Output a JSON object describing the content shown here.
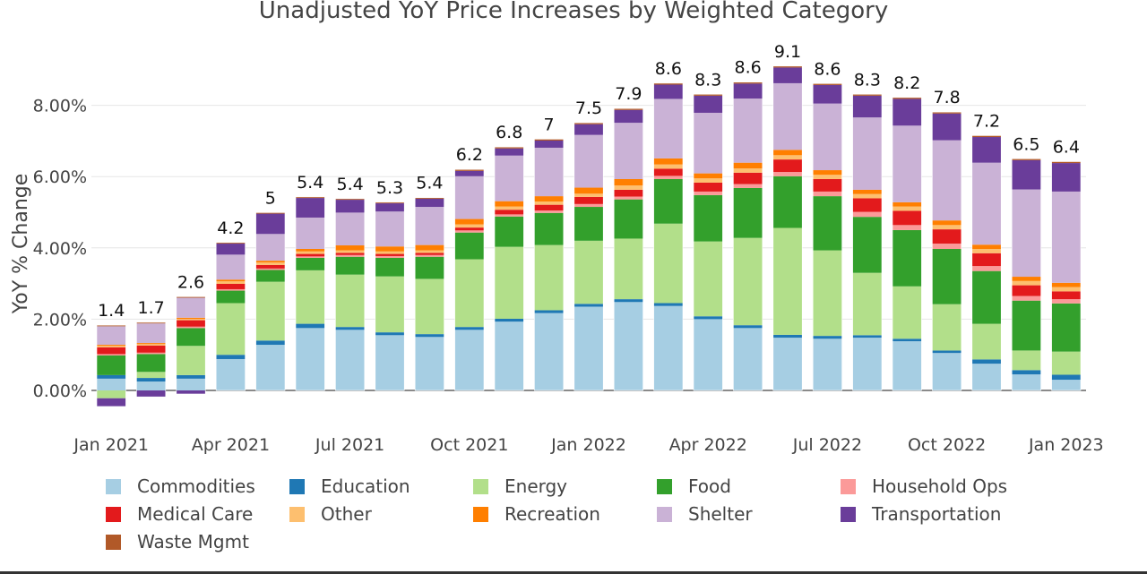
{
  "chart_data": {
    "type": "bar",
    "stacked": true,
    "title": "Unadjusted YoY Price Increases by Weighted Category",
    "xlabel": "",
    "ylabel": "YoY % Change",
    "ylim": [
      -0.6,
      8.8
    ],
    "yticks": [
      0,
      2,
      4,
      6,
      8
    ],
    "ytick_labels": [
      "0.00%",
      "2.00%",
      "4.00%",
      "6.00%",
      "8.00%"
    ],
    "xtick_labels": [
      {
        "index": 0,
        "label": "Jan 2021"
      },
      {
        "index": 3,
        "label": "Apr 2021"
      },
      {
        "index": 6,
        "label": "Jul 2021"
      },
      {
        "index": 9,
        "label": "Oct 2021"
      },
      {
        "index": 12,
        "label": "Jan 2022"
      },
      {
        "index": 15,
        "label": "Apr 2022"
      },
      {
        "index": 18,
        "label": "Jul 2022"
      },
      {
        "index": 21,
        "label": "Oct 2022"
      },
      {
        "index": 24,
        "label": "Jan 2023"
      }
    ],
    "categories": [
      "2021-01",
      "2021-02",
      "2021-03",
      "2021-04",
      "2021-05",
      "2021-06",
      "2021-07",
      "2021-08",
      "2021-09",
      "2021-10",
      "2021-11",
      "2021-12",
      "2022-01",
      "2022-02",
      "2022-03",
      "2022-04",
      "2022-05",
      "2022-06",
      "2022-07",
      "2022-08",
      "2022-09",
      "2022-10",
      "2022-11",
      "2022-12",
      "2023-01"
    ],
    "totals": [
      "1.4",
      "1.7",
      "2.6",
      "4.2",
      "5",
      "5.4",
      "5.4",
      "5.3",
      "5.4",
      "6.2",
      "6.8",
      "7",
      "7.5",
      "7.9",
      "8.6",
      "8.3",
      "8.6",
      "9.1",
      "8.6",
      "8.3",
      "8.2",
      "7.8",
      "7.2",
      "6.5",
      "6.4"
    ],
    "series": [
      {
        "name": "Commodities",
        "color": "#a6cee3",
        "values": [
          0.33,
          0.25,
          0.33,
          0.88,
          1.28,
          1.75,
          1.7,
          1.55,
          1.5,
          1.7,
          1.93,
          2.17,
          2.35,
          2.48,
          2.37,
          2.0,
          1.75,
          1.48,
          1.45,
          1.48,
          1.38,
          1.05,
          0.75,
          0.45,
          0.3
        ]
      },
      {
        "name": "Education",
        "color": "#1f78b4",
        "values": [
          0.1,
          0.1,
          0.1,
          0.12,
          0.12,
          0.12,
          0.08,
          0.08,
          0.08,
          0.08,
          0.08,
          0.08,
          0.08,
          0.08,
          0.08,
          0.08,
          0.08,
          0.08,
          0.08,
          0.07,
          0.07,
          0.07,
          0.12,
          0.12,
          0.14
        ]
      },
      {
        "name": "Energy",
        "color": "#b2df8a",
        "values": [
          -0.22,
          0.17,
          0.82,
          1.45,
          1.65,
          1.5,
          1.47,
          1.57,
          1.55,
          1.9,
          2.02,
          1.83,
          1.77,
          1.7,
          2.23,
          2.1,
          2.45,
          3.0,
          2.4,
          1.75,
          1.47,
          1.3,
          1.0,
          0.55,
          0.65
        ]
      },
      {
        "name": "Food",
        "color": "#33a02c",
        "values": [
          0.55,
          0.5,
          0.5,
          0.35,
          0.33,
          0.35,
          0.5,
          0.52,
          0.62,
          0.75,
          0.85,
          0.9,
          0.95,
          1.1,
          1.25,
          1.3,
          1.4,
          1.45,
          1.52,
          1.57,
          1.58,
          1.55,
          1.48,
          1.4,
          1.35
        ]
      },
      {
        "name": "Household Ops",
        "color": "#fb9a99",
        "values": [
          0.04,
          0.04,
          0.04,
          0.04,
          0.04,
          0.04,
          0.05,
          0.05,
          0.05,
          0.06,
          0.06,
          0.07,
          0.08,
          0.08,
          0.09,
          0.1,
          0.11,
          0.12,
          0.13,
          0.14,
          0.14,
          0.15,
          0.14,
          0.13,
          0.12
        ]
      },
      {
        "name": "Medical Care",
        "color": "#e31a1c",
        "values": [
          0.19,
          0.2,
          0.18,
          0.15,
          0.1,
          0.07,
          0.06,
          0.06,
          0.06,
          0.08,
          0.13,
          0.16,
          0.2,
          0.19,
          0.2,
          0.25,
          0.32,
          0.35,
          0.35,
          0.38,
          0.4,
          0.4,
          0.36,
          0.3,
          0.22
        ]
      },
      {
        "name": "Other",
        "color": "#fdbf6f",
        "values": [
          0.04,
          0.04,
          0.04,
          0.07,
          0.07,
          0.07,
          0.07,
          0.07,
          0.07,
          0.09,
          0.09,
          0.09,
          0.09,
          0.12,
          0.12,
          0.12,
          0.12,
          0.12,
          0.12,
          0.12,
          0.12,
          0.12,
          0.12,
          0.12,
          0.12
        ]
      },
      {
        "name": "Recreation",
        "color": "#ff7f00",
        "values": [
          0.03,
          0.03,
          0.03,
          0.05,
          0.05,
          0.07,
          0.14,
          0.14,
          0.15,
          0.15,
          0.15,
          0.15,
          0.17,
          0.18,
          0.17,
          0.14,
          0.16,
          0.15,
          0.13,
          0.12,
          0.12,
          0.13,
          0.12,
          0.12,
          0.12
        ]
      },
      {
        "name": "Shelter",
        "color": "#cab2d6",
        "values": [
          0.52,
          0.55,
          0.56,
          0.7,
          0.75,
          0.88,
          0.92,
          0.98,
          1.07,
          1.2,
          1.28,
          1.36,
          1.48,
          1.58,
          1.67,
          1.7,
          1.8,
          1.87,
          1.87,
          2.03,
          2.15,
          2.25,
          2.3,
          2.45,
          2.56
        ]
      },
      {
        "name": "Transportation",
        "color": "#6a3d9a",
        "values": [
          -0.23,
          -0.18,
          -0.1,
          0.31,
          0.57,
          0.55,
          0.36,
          0.23,
          0.23,
          0.15,
          0.2,
          0.2,
          0.3,
          0.36,
          0.4,
          0.48,
          0.42,
          0.44,
          0.52,
          0.61,
          0.75,
          0.75,
          0.72,
          0.82,
          0.8
        ]
      },
      {
        "name": "Waste Mgmt",
        "color": "#b15928",
        "values": [
          0.03,
          0.03,
          0.03,
          0.03,
          0.03,
          0.03,
          0.03,
          0.03,
          0.03,
          0.04,
          0.04,
          0.04,
          0.04,
          0.04,
          0.04,
          0.04,
          0.04,
          0.04,
          0.04,
          0.04,
          0.04,
          0.04,
          0.04,
          0.04,
          0.04
        ]
      }
    ],
    "legend_position": "bottom"
  }
}
